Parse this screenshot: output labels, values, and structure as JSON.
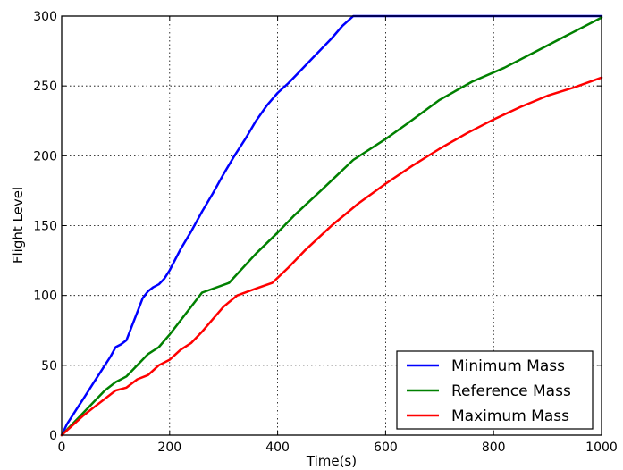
{
  "chart_data": {
    "type": "line",
    "title": "",
    "xlabel": "Time(s)",
    "ylabel": "Flight Level",
    "xlim": [
      0,
      1000
    ],
    "ylim": [
      0,
      300
    ],
    "xticks": [
      "0",
      "200",
      "400",
      "600",
      "800",
      "1000"
    ],
    "yticks": [
      "0",
      "50",
      "100",
      "150",
      "200",
      "250",
      "300"
    ],
    "grid": true,
    "legend_position": "bottom-right",
    "series": [
      {
        "name": "Minimum Mass",
        "color": "#0000ff",
        "x": [
          0,
          10,
          20,
          30,
          40,
          50,
          60,
          70,
          80,
          90,
          100,
          110,
          120,
          130,
          140,
          150,
          160,
          170,
          180,
          190,
          200,
          220,
          240,
          260,
          280,
          300,
          320,
          340,
          360,
          380,
          400,
          420,
          440,
          460,
          480,
          500,
          520,
          540,
          1000
        ],
        "y": [
          0,
          8,
          14,
          20,
          26,
          32,
          38,
          44,
          50,
          56,
          63,
          65,
          68,
          78,
          88,
          98,
          103,
          106,
          108,
          112,
          118,
          133,
          146,
          160,
          173,
          187,
          200,
          212,
          225,
          236,
          245,
          252,
          260,
          268,
          276,
          284,
          293,
          300,
          300
        ]
      },
      {
        "name": "Reference Mass",
        "color": "#008000",
        "x": [
          0,
          20,
          40,
          60,
          80,
          100,
          120,
          140,
          160,
          180,
          200,
          230,
          260,
          310,
          360,
          400,
          430,
          480,
          540,
          600,
          640,
          700,
          760,
          820,
          880,
          940,
          1000
        ],
        "y": [
          0,
          8,
          16,
          24,
          32,
          38,
          42,
          50,
          58,
          63,
          72,
          87,
          102,
          109,
          130,
          145,
          157,
          175,
          197,
          212,
          223,
          240,
          253,
          263,
          275,
          287,
          299
        ]
      },
      {
        "name": "Maximum Mass",
        "color": "#ff0000",
        "x": [
          0,
          20,
          40,
          60,
          80,
          100,
          120,
          140,
          160,
          180,
          200,
          220,
          240,
          260,
          280,
          300,
          325,
          360,
          390,
          420,
          450,
          500,
          550,
          600,
          650,
          700,
          750,
          800,
          850,
          900,
          950,
          1000
        ],
        "y": [
          0,
          7,
          14,
          20,
          26,
          32,
          34,
          40,
          43,
          50,
          54,
          61,
          66,
          74,
          83,
          92,
          100,
          105,
          109,
          120,
          132,
          150,
          166,
          180,
          193,
          205,
          216,
          226,
          235,
          243,
          249,
          256
        ]
      }
    ]
  }
}
